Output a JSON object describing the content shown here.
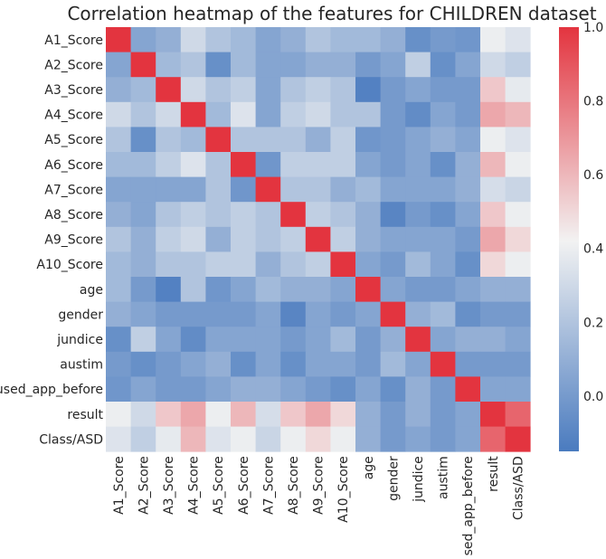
{
  "chart_data": {
    "type": "heatmap",
    "title": "Correlation heatmap of the features for CHILDREN dataset",
    "row_labels": [
      "A1_Score",
      "A2_Score",
      "A3_Score",
      "A4_Score",
      "A5_Score",
      "A6_Score",
      "A7_Score",
      "A8_Score",
      "A9_Score",
      "A10_Score",
      "age",
      "gender",
      "jundice",
      "austim",
      "used_app_before",
      "result",
      "Class/ASD"
    ],
    "col_labels": [
      "A1_Score",
      "A2_Score",
      "A3_Score",
      "A4_Score",
      "A5_Score",
      "A6_Score",
      "A7_Score",
      "A8_Score",
      "A9_Score",
      "A10_Score",
      "age",
      "gender",
      "jundice",
      "austim",
      "used_app_before",
      "result",
      "Class/ASD"
    ],
    "values": [
      [
        1.0,
        0.05,
        0.1,
        0.3,
        0.2,
        0.15,
        0.05,
        0.1,
        0.2,
        0.15,
        0.15,
        0.1,
        -0.05,
        0.0,
        -0.02,
        0.4,
        0.35
      ],
      [
        0.05,
        1.0,
        0.15,
        0.2,
        -0.05,
        0.15,
        0.05,
        0.05,
        0.1,
        0.1,
        0.0,
        0.05,
        0.25,
        -0.05,
        0.05,
        0.3,
        0.25
      ],
      [
        0.1,
        0.15,
        1.0,
        0.3,
        0.2,
        0.25,
        0.05,
        0.2,
        0.25,
        0.2,
        -0.12,
        0.0,
        0.05,
        0.0,
        0.0,
        0.55,
        0.38
      ],
      [
        0.3,
        0.2,
        0.3,
        1.0,
        0.15,
        0.35,
        0.05,
        0.25,
        0.3,
        0.2,
        0.2,
        0.0,
        -0.07,
        0.05,
        0.0,
        0.65,
        0.6
      ],
      [
        0.2,
        -0.05,
        0.2,
        0.15,
        1.0,
        0.2,
        0.2,
        0.2,
        0.1,
        0.25,
        -0.02,
        0.0,
        0.05,
        0.1,
        0.05,
        0.4,
        0.35
      ],
      [
        0.15,
        0.15,
        0.25,
        0.35,
        0.2,
        1.0,
        -0.02,
        0.25,
        0.25,
        0.25,
        0.05,
        0.0,
        0.05,
        -0.05,
        0.1,
        0.6,
        0.4
      ],
      [
        0.05,
        0.05,
        0.05,
        0.05,
        0.2,
        -0.02,
        1.0,
        0.2,
        0.2,
        0.1,
        0.15,
        0.05,
        0.05,
        0.05,
        0.1,
        0.32,
        0.28
      ],
      [
        0.1,
        0.05,
        0.2,
        0.25,
        0.2,
        0.25,
        0.2,
        1.0,
        0.25,
        0.2,
        0.1,
        -0.1,
        0.0,
        -0.05,
        0.05,
        0.55,
        0.4
      ],
      [
        0.2,
        0.1,
        0.25,
        0.3,
        0.1,
        0.25,
        0.2,
        0.25,
        1.0,
        0.25,
        0.1,
        0.05,
        0.05,
        0.05,
        0.0,
        0.65,
        0.5
      ],
      [
        0.15,
        0.1,
        0.2,
        0.2,
        0.25,
        0.25,
        0.1,
        0.2,
        0.25,
        1.0,
        0.05,
        0.0,
        0.15,
        0.05,
        -0.05,
        0.5,
        0.4
      ],
      [
        0.15,
        0.0,
        -0.12,
        0.2,
        -0.02,
        0.05,
        0.15,
        0.1,
        0.1,
        0.05,
        1.0,
        0.05,
        0.0,
        0.0,
        0.05,
        0.1,
        0.1
      ],
      [
        0.1,
        0.05,
        0.0,
        0.0,
        0.0,
        0.0,
        0.05,
        -0.1,
        0.05,
        0.0,
        0.05,
        1.0,
        0.1,
        0.15,
        -0.05,
        0.0,
        0.0
      ],
      [
        -0.05,
        0.25,
        0.05,
        -0.07,
        0.05,
        0.05,
        0.05,
        0.0,
        0.05,
        0.15,
        0.0,
        0.1,
        1.0,
        0.05,
        0.1,
        0.1,
        0.05
      ],
      [
        0.0,
        -0.05,
        0.0,
        0.05,
        0.1,
        -0.05,
        0.05,
        -0.05,
        0.05,
        0.05,
        0.0,
        0.15,
        0.05,
        1.0,
        0.0,
        0.0,
        0.0
      ],
      [
        -0.02,
        0.05,
        0.0,
        0.0,
        0.05,
        0.1,
        0.1,
        0.05,
        0.0,
        -0.05,
        0.05,
        -0.05,
        0.1,
        0.0,
        1.0,
        0.05,
        0.05
      ],
      [
        0.4,
        0.3,
        0.55,
        0.65,
        0.4,
        0.6,
        0.32,
        0.55,
        0.65,
        0.5,
        0.1,
        0.0,
        0.1,
        0.0,
        0.05,
        1.0,
        0.85
      ],
      [
        0.35,
        0.25,
        0.38,
        0.6,
        0.35,
        0.4,
        0.28,
        0.4,
        0.5,
        0.4,
        0.1,
        0.0,
        0.05,
        0.0,
        0.05,
        0.85,
        1.0
      ]
    ],
    "colorbar": {
      "vmin": -0.15,
      "vmax": 1.0,
      "ticks": [
        0.0,
        0.2,
        0.4,
        0.6,
        0.8,
        1.0
      ],
      "tick_labels": [
        "0.0",
        "0.2",
        "0.4",
        "0.6",
        "0.8",
        "1.0"
      ],
      "low_color": "#4a7bbf",
      "mid_color": "#f2f2f2",
      "high_color": "#e3343f",
      "mid_value": 0.42
    },
    "grid": false,
    "legend": "colorbar-right"
  }
}
